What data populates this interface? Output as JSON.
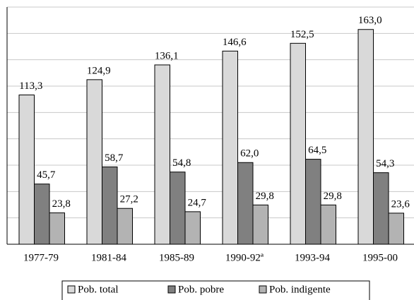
{
  "chart_data": {
    "type": "bar",
    "categories": [
      "1977-79",
      "1981-84",
      "1985-89",
      "1990-92ª",
      "1993-94",
      "1995-00"
    ],
    "series": [
      {
        "name": "Pob. total",
        "color": "#d9d9d9",
        "values": [
          113.3,
          124.9,
          136.1,
          146.6,
          152.5,
          163.0
        ],
        "value_labels": [
          "113,3",
          "124,9",
          "136,1",
          "146,6",
          "152,5",
          "163,0"
        ]
      },
      {
        "name": "Pob. pobre",
        "color": "#808080",
        "values": [
          45.7,
          58.7,
          54.8,
          62.0,
          64.5,
          54.3
        ],
        "value_labels": [
          "45,7",
          "58,7",
          "54,8",
          "62,0",
          "64,5",
          "54,3"
        ]
      },
      {
        "name": "Pob. indigente",
        "color": "#b3b3b3",
        "values": [
          23.8,
          27.2,
          24.7,
          29.8,
          29.8,
          23.6
        ],
        "value_labels": [
          "23,8",
          "27,2",
          "24,7",
          "29,8",
          "29,8",
          "23,6"
        ]
      }
    ],
    "ylim": [
      0,
      180
    ],
    "yticks": [
      0,
      20,
      40,
      60,
      80,
      100,
      120,
      140,
      160,
      180
    ],
    "grid": true
  }
}
